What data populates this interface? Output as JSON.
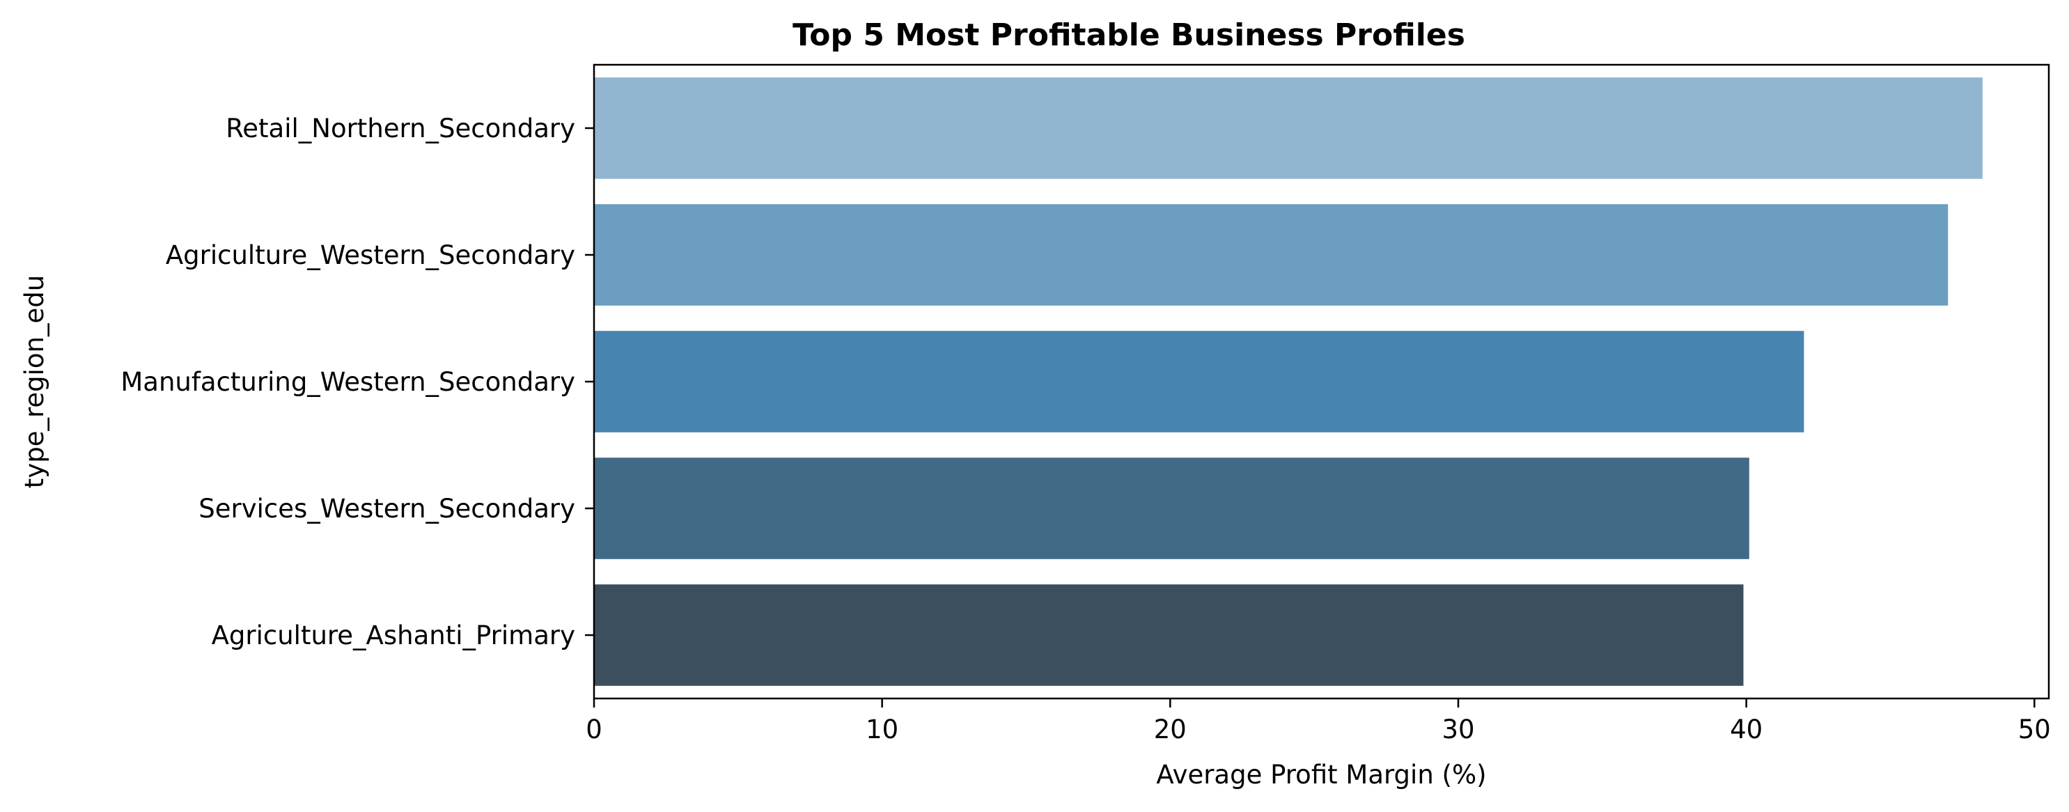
{
  "chart_data": {
    "type": "bar",
    "orientation": "horizontal",
    "title": "Top 5 Most Profitable Business Profiles",
    "xlabel": "Average Profit Margin (%)",
    "ylabel": "type_region_edu",
    "categories": [
      "Retail_Northern_Secondary",
      "Agriculture_Western_Secondary",
      "Manufacturing_Western_Secondary",
      "Services_Western_Secondary",
      "Agriculture_Ashanti_Primary"
    ],
    "values": [
      48.2,
      47.0,
      42.0,
      40.1,
      39.9
    ],
    "colors": [
      "#92b6d0",
      "#6b9ec0",
      "#4884b0",
      "#416a86",
      "#3b4f5e"
    ],
    "xlim": [
      0,
      50.5
    ],
    "xticks": [
      0,
      10,
      20,
      30,
      40,
      50
    ],
    "grid": false,
    "legend": "none"
  }
}
